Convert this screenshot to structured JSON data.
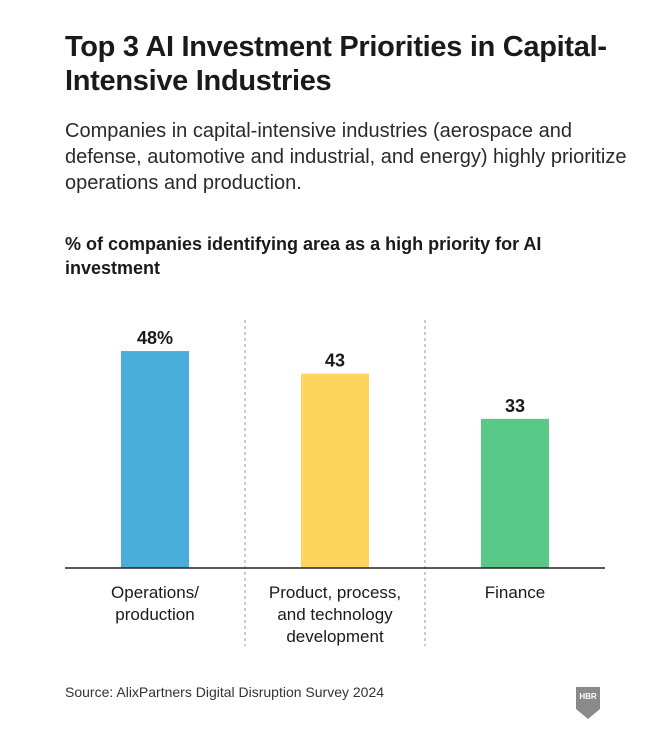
{
  "title": "Top 3 AI Investment Priorities in Capital-Intensive Industries",
  "subtitle": "Companies in capital-intensive industries (aerospace and defense, automotive and industrial, and energy) highly prioritize operations and production.",
  "chart_heading": "% of companies identifying area as a high priority for AI investment",
  "source": "Source: AlixPartners Digital Disruption Survey 2024",
  "logo_text": "HBR",
  "colors": {
    "operations": "#4aaedb",
    "product": "#fdd55c",
    "finance": "#5ac987",
    "text": "#1a1a1a",
    "axis": "#222222",
    "divider": "#9a9a9a",
    "logo": "#8a8a8a"
  },
  "chart_data": {
    "type": "bar",
    "categories": [
      [
        "Operations/",
        "production"
      ],
      [
        "Product, process,",
        "and technology",
        "development"
      ],
      [
        "Finance"
      ]
    ],
    "values": [
      48,
      43,
      33
    ],
    "value_labels": [
      "48%",
      "43",
      "33"
    ],
    "series_colors": [
      "#4aaedb",
      "#fdd55c",
      "#5ac987"
    ],
    "title": "% of companies identifying area as a high priority for AI investment",
    "xlabel": "",
    "ylabel": "",
    "ylim": [
      0,
      50
    ],
    "grid": false,
    "legend": "none"
  }
}
